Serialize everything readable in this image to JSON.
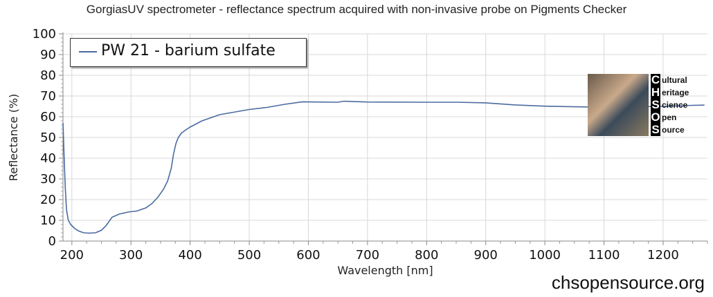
{
  "title": "GorgiasUV spectrometer - reflectance spectrum acquired with non-invasive probe on Pigments Checker",
  "footer": "chsopensource.org",
  "logo": {
    "letters": [
      "C",
      "H",
      "S",
      "O",
      "S"
    ],
    "words": [
      "ultural",
      "eritage",
      "cience",
      "pen",
      "ource"
    ]
  },
  "chart_data": {
    "type": "line",
    "title": "GorgiasUV spectrometer - reflectance spectrum acquired with non-invasive probe on Pigments Checker",
    "xlabel": "Wavelength [nm]",
    "ylabel": "Reflectance (%)",
    "xlim": [
      185,
      1275
    ],
    "ylim": [
      0,
      100
    ],
    "xticks": [
      200,
      300,
      400,
      500,
      600,
      700,
      800,
      900,
      1000,
      1100,
      1200
    ],
    "yticks": [
      0,
      10,
      20,
      30,
      40,
      50,
      60,
      70,
      80,
      90,
      100
    ],
    "grid": true,
    "legend_position": "top-left",
    "color": "#4a6aa0",
    "series": [
      {
        "name": "PW 21 - barium sulfate",
        "x": [
          185,
          187,
          189,
          191,
          194,
          198,
          205,
          212,
          220,
          230,
          240,
          250,
          258,
          263,
          268,
          280,
          295,
          310,
          325,
          335,
          345,
          355,
          362,
          368,
          372,
          376,
          380,
          385,
          392,
          400,
          420,
          450,
          480,
          500,
          530,
          560,
          590,
          650,
          660,
          700,
          800,
          850,
          900,
          950,
          1000,
          1050,
          1100,
          1150,
          1200,
          1250,
          1270
        ],
        "y": [
          57,
          40,
          25,
          15,
          10,
          8,
          6,
          4.8,
          4,
          3.8,
          4,
          5.2,
          7.5,
          9.5,
          11.5,
          13,
          14,
          14.5,
          16,
          18,
          21,
          25,
          29,
          35,
          42,
          47,
          50,
          52,
          53.5,
          55,
          58,
          61,
          62.5,
          63.5,
          64.5,
          66,
          67.2,
          67,
          67.5,
          67.1,
          67,
          67,
          66.7,
          65.7,
          65.1,
          64.8,
          64.6,
          64.8,
          65,
          65.5,
          65.6
        ]
      }
    ]
  }
}
